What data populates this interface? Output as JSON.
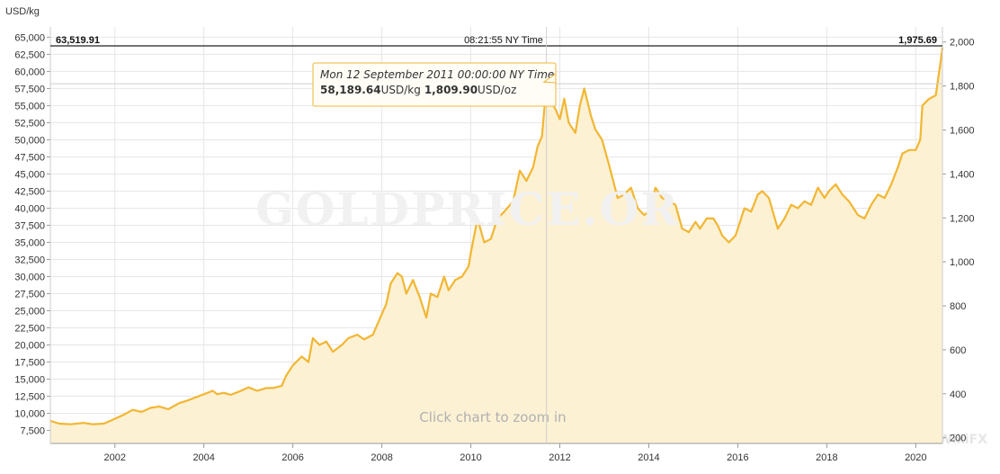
{
  "chart_data": {
    "type": "area",
    "left_axis_unit": "USD/kg",
    "y_left_ticks": [
      7500,
      10000,
      12500,
      15000,
      17500,
      20000,
      22500,
      25000,
      27500,
      30000,
      32500,
      35000,
      37500,
      40000,
      42500,
      45000,
      47500,
      50000,
      52500,
      55000,
      57500,
      60000,
      62500,
      65000
    ],
    "y_left_tick_labels": [
      "7,500",
      "10,000",
      "12,500",
      "15,000",
      "17,500",
      "20,000",
      "22,500",
      "25,000",
      "27,500",
      "30,000",
      "32,500",
      "35,000",
      "37,500",
      "40,000",
      "42,500",
      "45,000",
      "47,500",
      "50,000",
      "52,500",
      "55,000",
      "57,500",
      "60,000",
      "62,500",
      "65,000"
    ],
    "y_right_ticks": [
      200,
      400,
      600,
      800,
      1000,
      1200,
      1400,
      1600,
      1800,
      2000
    ],
    "y_right_tick_labels": [
      "200",
      "400",
      "600",
      "800",
      "1,000",
      "1,200",
      "1,400",
      "1,600",
      "1,800",
      "2,000"
    ],
    "x_ticks": [
      2002,
      2004,
      2006,
      2008,
      2010,
      2012,
      2014,
      2016,
      2018,
      2020
    ],
    "x_tick_labels": [
      "2002",
      "2004",
      "2006",
      "2008",
      "2010",
      "2012",
      "2014",
      "2016",
      "2018",
      "2020"
    ],
    "xlim": [
      2000.55,
      2020.6
    ],
    "ylim_left": [
      5600,
      66500
    ],
    "grid": true,
    "header": {
      "left_value": "63,519.91",
      "center_time": "08:21:55 NY Time",
      "right_value": "1,975.69"
    },
    "tooltip": {
      "date": "Mon 12 September 2011 00:00:00 NY Time",
      "usd_kg": "58,189.64",
      "usd_kg_unit": "USD/kg",
      "usd_oz": "1,809.90",
      "usd_oz_unit": "USD/oz",
      "x": 2011.7,
      "y": 58190
    },
    "zoom_hint": "Click chart to zoom in",
    "watermark": "GOLDPRICE.OR",
    "corner_mark": "WikiFX",
    "series": [
      {
        "color": "#f2b632",
        "fill": "#fdf1d4",
        "x": [
          2000.55,
          2000.75,
          2001.0,
          2001.3,
          2001.5,
          2001.75,
          2001.9,
          2002.0,
          2002.2,
          2002.4,
          2002.6,
          2002.8,
          2003.0,
          2003.2,
          2003.45,
          2003.6,
          2003.8,
          2004.0,
          2004.2,
          2004.3,
          2004.45,
          2004.6,
          2004.8,
          2005.0,
          2005.2,
          2005.4,
          2005.55,
          2005.75,
          2005.85,
          2006.0,
          2006.2,
          2006.35,
          2006.45,
          2006.6,
          2006.75,
          2006.9,
          2007.1,
          2007.25,
          2007.45,
          2007.6,
          2007.8,
          2008.0,
          2008.1,
          2008.2,
          2008.35,
          2008.45,
          2008.55,
          2008.7,
          2008.85,
          2009.0,
          2009.1,
          2009.25,
          2009.4,
          2009.5,
          2009.65,
          2009.8,
          2009.95,
          2010.0,
          2010.15,
          2010.3,
          2010.45,
          2010.6,
          2010.75,
          2010.95,
          2011.1,
          2011.25,
          2011.4,
          2011.5,
          2011.6,
          2011.7,
          2011.82,
          2011.9,
          2012.0,
          2012.1,
          2012.2,
          2012.35,
          2012.45,
          2012.55,
          2012.7,
          2012.8,
          2012.95,
          2013.1,
          2013.2,
          2013.3,
          2013.45,
          2013.6,
          2013.75,
          2013.9,
          2014.0,
          2014.15,
          2014.3,
          2014.45,
          2014.6,
          2014.75,
          2014.9,
          2015.05,
          2015.15,
          2015.3,
          2015.45,
          2015.55,
          2015.65,
          2015.8,
          2015.95,
          2016.05,
          2016.15,
          2016.3,
          2016.45,
          2016.55,
          2016.7,
          2016.9,
          2017.05,
          2017.2,
          2017.35,
          2017.5,
          2017.65,
          2017.8,
          2017.95,
          2018.05,
          2018.2,
          2018.35,
          2018.5,
          2018.7,
          2018.85,
          2019.0,
          2019.15,
          2019.3,
          2019.45,
          2019.6,
          2019.7,
          2019.85,
          2020.0,
          2020.1,
          2020.15,
          2020.3,
          2020.45,
          2020.55,
          2020.6
        ],
        "y": [
          8900,
          8500,
          8400,
          8600,
          8400,
          8500,
          8900,
          9200,
          9800,
          10500,
          10200,
          10800,
          11000,
          10600,
          11500,
          11800,
          12300,
          12800,
          13300,
          12800,
          13000,
          12700,
          13200,
          13800,
          13300,
          13700,
          13700,
          14000,
          15500,
          17000,
          18300,
          17500,
          21000,
          20000,
          20500,
          19000,
          20000,
          21000,
          21500,
          20800,
          21500,
          24500,
          26000,
          29000,
          30500,
          30000,
          27500,
          29500,
          27000,
          24000,
          27500,
          27000,
          30000,
          28000,
          29500,
          30000,
          31500,
          33500,
          38500,
          35000,
          35500,
          38500,
          39500,
          41000,
          45500,
          44000,
          46000,
          49000,
          50500,
          58200,
          55500,
          54500,
          53000,
          56000,
          52500,
          51000,
          55000,
          57500,
          53500,
          51500,
          50000,
          46500,
          44000,
          41500,
          42000,
          43000,
          40000,
          39000,
          39500,
          43000,
          41500,
          41000,
          40500,
          37000,
          36500,
          38000,
          37000,
          38500,
          38500,
          37500,
          36000,
          35000,
          36000,
          38000,
          40000,
          39500,
          42000,
          42500,
          41500,
          37000,
          38500,
          40500,
          40000,
          41000,
          40500,
          43000,
          41500,
          42500,
          43500,
          42000,
          41000,
          39000,
          38500,
          40500,
          42000,
          41500,
          43500,
          46000,
          48000,
          48500,
          48500,
          50000,
          55000,
          56000,
          56500,
          61000,
          63500
        ]
      }
    ]
  }
}
